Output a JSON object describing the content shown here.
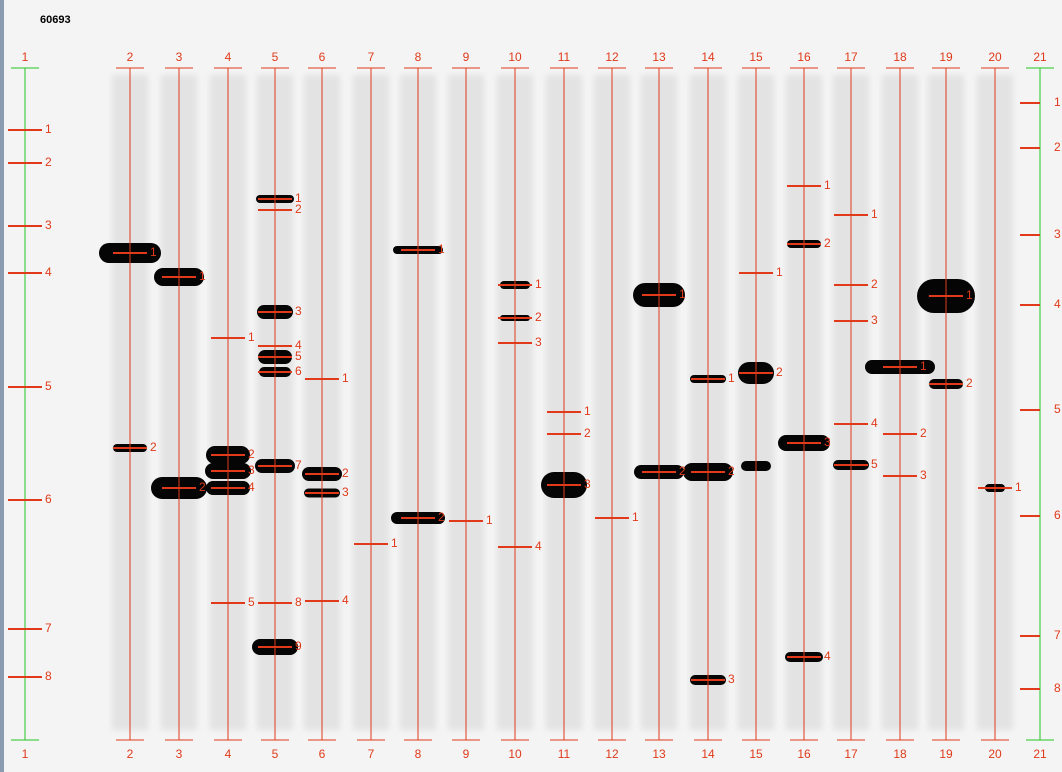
{
  "id_label": "60693",
  "lanes": [
    {
      "top": "1",
      "bottom": "1",
      "bands": [
        "1",
        "2",
        "3",
        "4",
        "5",
        "6",
        "7",
        "8"
      ]
    },
    {
      "top": "2",
      "bottom": "2",
      "bands": [
        "1",
        "2"
      ]
    },
    {
      "top": "3",
      "bottom": "3",
      "bands": [
        "1",
        "2"
      ]
    },
    {
      "top": "4",
      "bottom": "4",
      "bands": [
        "1",
        "2",
        "3",
        "4",
        "5"
      ]
    },
    {
      "top": "5",
      "bottom": "5",
      "bands": [
        "1",
        "2",
        "3",
        "4",
        "5",
        "6",
        "7",
        "8",
        "9"
      ]
    },
    {
      "top": "6",
      "bottom": "6",
      "bands": [
        "1",
        "2",
        "3",
        "4"
      ]
    },
    {
      "top": "7",
      "bottom": "7",
      "bands": [
        "1"
      ]
    },
    {
      "top": "8",
      "bottom": "8",
      "bands": [
        "1",
        "2"
      ]
    },
    {
      "top": "9",
      "bottom": "9",
      "bands": [
        "1"
      ]
    },
    {
      "top": "10",
      "bottom": "10",
      "bands": [
        "1",
        "2",
        "3",
        "4"
      ]
    },
    {
      "top": "11",
      "bottom": "11",
      "bands": [
        "1",
        "2",
        "3"
      ]
    },
    {
      "top": "12",
      "bottom": "12",
      "bands": [
        "1"
      ]
    },
    {
      "top": "13",
      "bottom": "13",
      "bands": [
        "1",
        "2"
      ]
    },
    {
      "top": "14",
      "bottom": "14",
      "bands": [
        "1",
        "2",
        "3"
      ]
    },
    {
      "top": "15",
      "bottom": "15",
      "bands": [
        "1",
        "2"
      ]
    },
    {
      "top": "16",
      "bottom": "16",
      "bands": [
        "1",
        "2",
        "3",
        "4"
      ]
    },
    {
      "top": "17",
      "bottom": "17",
      "bands": [
        "1",
        "2",
        "3",
        "4",
        "5"
      ]
    },
    {
      "top": "18",
      "bottom": "18",
      "bands": [
        "1",
        "2",
        "3"
      ]
    },
    {
      "top": "19",
      "bottom": "19",
      "bands": [
        "1",
        "2"
      ]
    },
    {
      "top": "20",
      "bottom": "20",
      "bands": [
        "1"
      ]
    },
    {
      "top": "21",
      "bottom": "21",
      "bands": [
        "1",
        "2",
        "3",
        "4",
        "5",
        "6",
        "7",
        "8"
      ]
    }
  ]
}
